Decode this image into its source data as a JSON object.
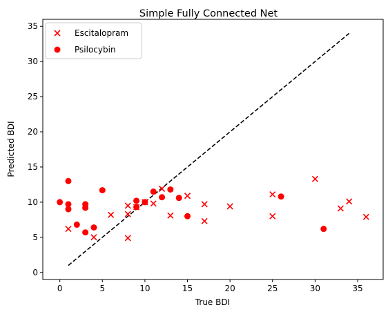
{
  "chart_data": {
    "type": "scatter",
    "title": "Simple Fully Connected Net",
    "xlabel": "True BDI",
    "ylabel": "Predicted BDI",
    "xlim": [
      -2,
      38
    ],
    "ylim": [
      -1,
      36
    ],
    "xticks": [
      0,
      5,
      10,
      15,
      20,
      25,
      30,
      35
    ],
    "yticks": [
      0,
      5,
      10,
      15,
      20,
      25,
      30,
      35
    ],
    "grid": false,
    "legend": "top-left",
    "color": "#ff0000",
    "series": [
      {
        "name": "Escitalopram",
        "marker": "x",
        "points": [
          [
            1,
            6.2
          ],
          [
            4,
            5.0
          ],
          [
            6,
            8.2
          ],
          [
            8,
            9.5
          ],
          [
            8,
            8.3
          ],
          [
            8,
            4.9
          ],
          [
            9,
            9.3
          ],
          [
            10,
            10.0
          ],
          [
            11,
            9.8
          ],
          [
            12,
            11.9
          ],
          [
            13,
            8.1
          ],
          [
            15,
            10.9
          ],
          [
            17,
            9.7
          ],
          [
            17,
            7.3
          ],
          [
            20,
            9.4
          ],
          [
            25,
            11.1
          ],
          [
            25,
            8.0
          ],
          [
            30,
            13.3
          ],
          [
            33,
            9.1
          ],
          [
            34,
            10.1
          ],
          [
            36,
            7.9
          ]
        ]
      },
      {
        "name": "Psilocybin",
        "marker": "o",
        "points": [
          [
            0,
            10.0
          ],
          [
            1,
            13.0
          ],
          [
            1,
            9.7
          ],
          [
            1,
            9.0
          ],
          [
            2,
            6.8
          ],
          [
            3,
            9.7
          ],
          [
            3,
            9.2
          ],
          [
            3,
            5.7
          ],
          [
            4,
            6.4
          ],
          [
            5,
            11.7
          ],
          [
            9,
            10.2
          ],
          [
            9,
            9.3
          ],
          [
            10,
            10.0
          ],
          [
            11,
            11.5
          ],
          [
            12,
            10.7
          ],
          [
            13,
            11.8
          ],
          [
            14,
            10.6
          ],
          [
            15,
            8.0
          ],
          [
            26,
            10.8
          ],
          [
            31,
            6.2
          ]
        ]
      }
    ],
    "reference_line": {
      "style": "dashed",
      "color": "#000000",
      "from": [
        1,
        1
      ],
      "to": [
        34,
        34
      ]
    }
  }
}
